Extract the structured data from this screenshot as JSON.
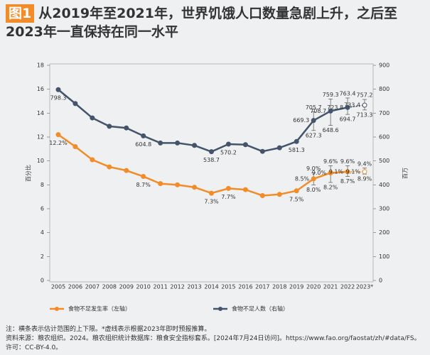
{
  "chart_data": {
    "type": "line",
    "badge": "图1",
    "title": "从2019年至2021年，世界饥饿人口数量急剧上升，之后至2023年一直保持在同一水平",
    "ylabel": "百分比",
    "y2label": "百万",
    "categories": [
      "2005",
      "2006",
      "2007",
      "2008",
      "2009",
      "2010",
      "2011",
      "2012",
      "2013",
      "2014",
      "2015",
      "2016",
      "2017",
      "2018",
      "2019",
      "2020",
      "2021",
      "2022",
      "2023*"
    ],
    "ylim": [
      0,
      18
    ],
    "yticks": [
      0,
      2,
      4,
      6,
      8,
      10,
      12,
      14,
      16,
      18
    ],
    "y2lim": [
      0,
      900
    ],
    "y2ticks": [
      0,
      100,
      200,
      300,
      400,
      500,
      600,
      700,
      800,
      900
    ],
    "series": [
      {
        "name": "食物不足发生率（左轴）",
        "color": "#f28c28",
        "axis": "y",
        "values": [
          12.2,
          11.2,
          10.1,
          9.5,
          9.2,
          8.7,
          8.1,
          8.0,
          7.8,
          7.3,
          7.7,
          7.6,
          7.1,
          7.2,
          7.5,
          8.5,
          9.0,
          9.1,
          9.1
        ],
        "value_labels": [
          "12.2%",
          null,
          null,
          null,
          null,
          "8.7%",
          null,
          null,
          null,
          "7.3%",
          "7.7%",
          null,
          null,
          null,
          "7.5%",
          "8.5%",
          "9.0%",
          "9.1%",
          "9.1%"
        ],
        "error_high": [
          null,
          null,
          null,
          null,
          null,
          null,
          null,
          null,
          null,
          null,
          null,
          null,
          null,
          null,
          null,
          9.0,
          9.6,
          9.6,
          9.4
        ],
        "error_high_labels": [
          null,
          null,
          null,
          null,
          null,
          null,
          null,
          null,
          null,
          null,
          null,
          null,
          null,
          null,
          null,
          "9.0%",
          "9.6%",
          "9.6%",
          "9.4%"
        ],
        "error_low": [
          null,
          null,
          null,
          null,
          null,
          null,
          null,
          null,
          null,
          null,
          null,
          null,
          null,
          null,
          null,
          8.0,
          8.2,
          8.7,
          8.9
        ],
        "error_low_labels": [
          null,
          null,
          null,
          null,
          null,
          null,
          null,
          null,
          null,
          null,
          null,
          null,
          null,
          null,
          null,
          "8.0%",
          "8.2%",
          "8.7%",
          "8.9%"
        ]
      },
      {
        "name": "食物不足人数（右轴）",
        "color": "#44546a",
        "axis": "y2",
        "values": [
          798.3,
          740,
          680,
          645,
          638,
          604.8,
          575,
          575,
          565,
          538.7,
          570.2,
          568,
          540,
          555,
          581.3,
          669.3,
          708.7,
          723.8,
          733.4
        ],
        "value_labels": [
          "798.3",
          null,
          null,
          null,
          null,
          "604.8",
          null,
          null,
          null,
          "538.7",
          "570.2",
          null,
          null,
          null,
          "581.3",
          "669.3",
          "708.7",
          "723.8",
          "733.4"
        ],
        "error_high": [
          null,
          null,
          null,
          null,
          null,
          null,
          null,
          null,
          null,
          null,
          null,
          null,
          null,
          null,
          null,
          705.7,
          759.3,
          763.4,
          757.2
        ],
        "error_high_labels": [
          null,
          null,
          null,
          null,
          null,
          null,
          null,
          null,
          null,
          null,
          null,
          null,
          null,
          null,
          null,
          "705.7",
          "759.3",
          "763.4",
          "757.2"
        ],
        "error_low": [
          null,
          null,
          null,
          null,
          null,
          null,
          null,
          null,
          null,
          null,
          null,
          null,
          null,
          null,
          null,
          627.3,
          648.6,
          694.7,
          713.3
        ],
        "error_low_labels": [
          null,
          null,
          null,
          null,
          null,
          null,
          null,
          null,
          null,
          null,
          null,
          null,
          null,
          null,
          null,
          "627.3",
          "648.6",
          "694.7",
          "713.3"
        ]
      }
    ],
    "note": "注：横条表示估计范围的上下限。*虚线表示根据2023年即时预报推算。",
    "source": "资料来源：粮农组织。2024。粮农组织统计数据库：粮食安全指标套系。[2024年7月24日访问]。https://www.fao.org/faostat/zh/#data/FS。许可：CC-BY-4.0。"
  }
}
